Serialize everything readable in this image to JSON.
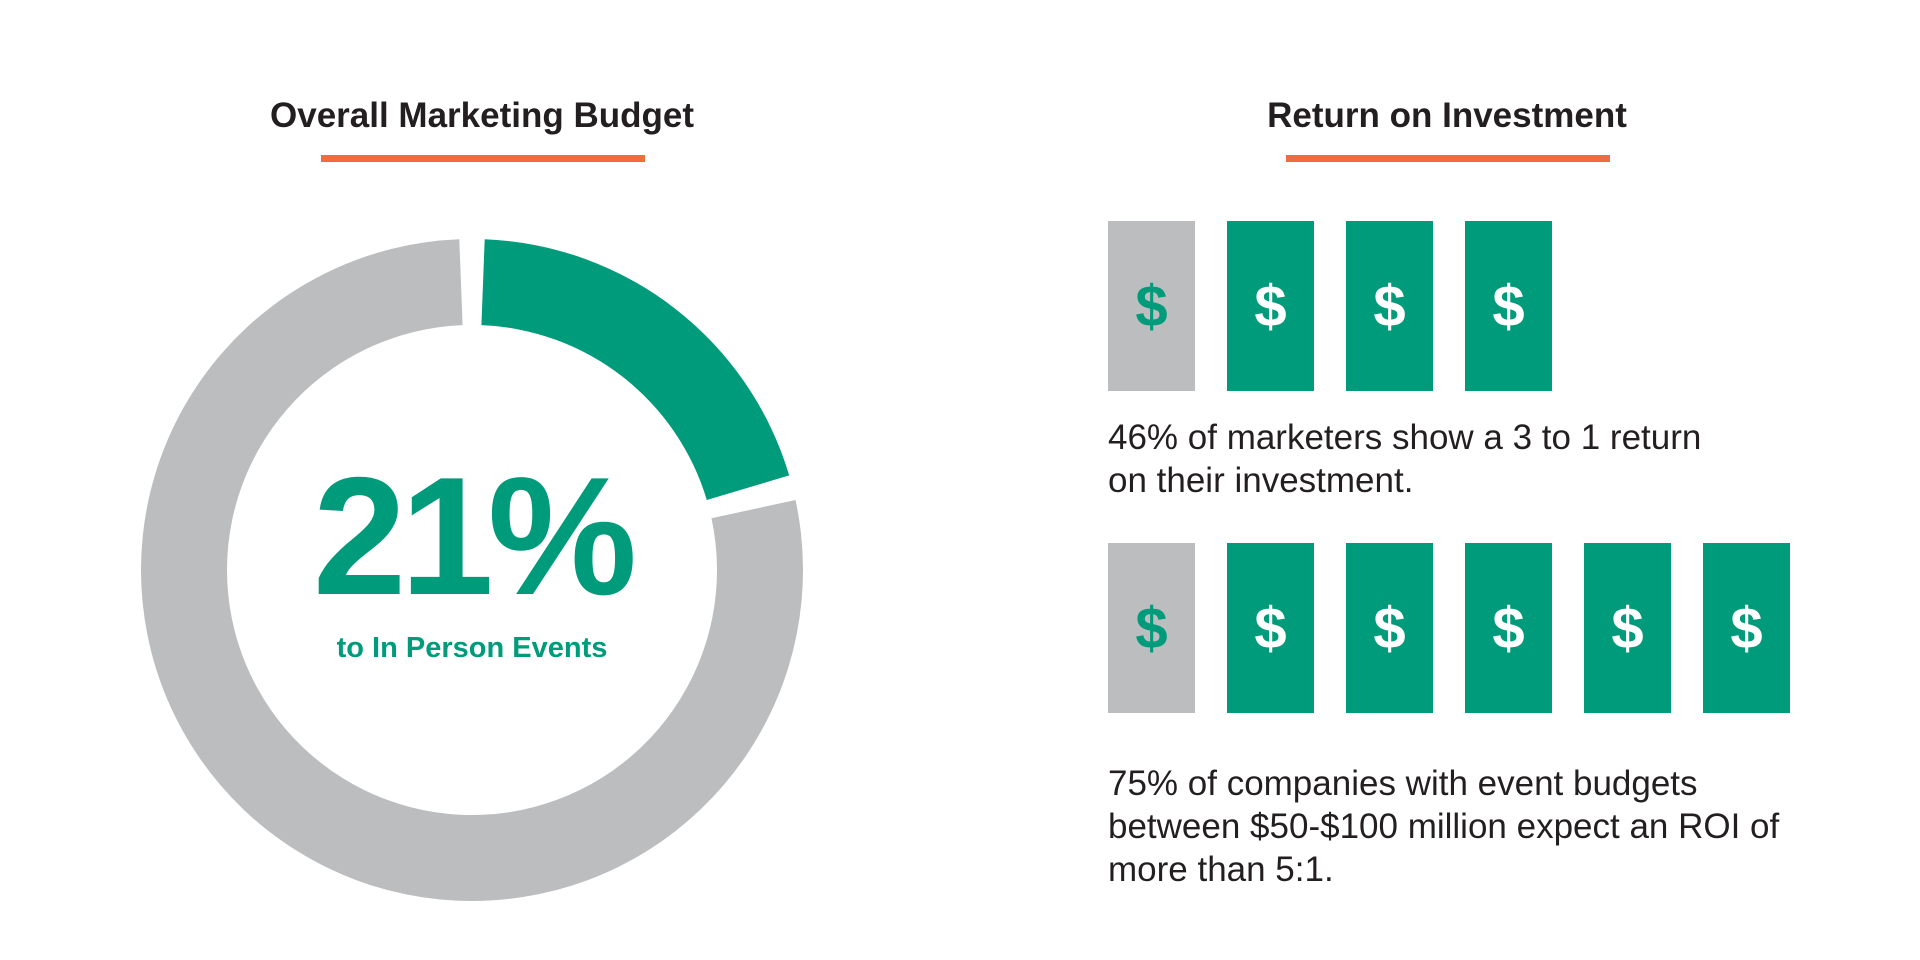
{
  "colors": {
    "green": "#009b7a",
    "gray": "#bcbdbf",
    "orange": "#f26b3a",
    "text": "#231f20"
  },
  "left_panel": {
    "title": "Overall Marketing Budget",
    "big_value": "21%",
    "caption": "to In Person Events"
  },
  "right_panel": {
    "title": "Return on Investment",
    "stat1_text": "46% of marketers show a 3 to 1 return on their investment.",
    "stat2_text": "75% of companies with event budgets between $50-$100 million expect an ROI of more than 5:1."
  },
  "chart_data": [
    {
      "type": "pie",
      "title": "Overall Marketing Budget",
      "slices": [
        {
          "label": "to In Person Events",
          "value": 21,
          "color": "#009b7a"
        },
        {
          "label": "",
          "value": 79,
          "color": "#bcbdbf"
        }
      ]
    },
    {
      "type": "bar",
      "title": "Return on Investment",
      "ratios": [
        {
          "invested": 1,
          "returned": 3,
          "symbol": "$"
        },
        {
          "invested": 1,
          "returned": 5,
          "symbol": "$"
        }
      ]
    }
  ]
}
